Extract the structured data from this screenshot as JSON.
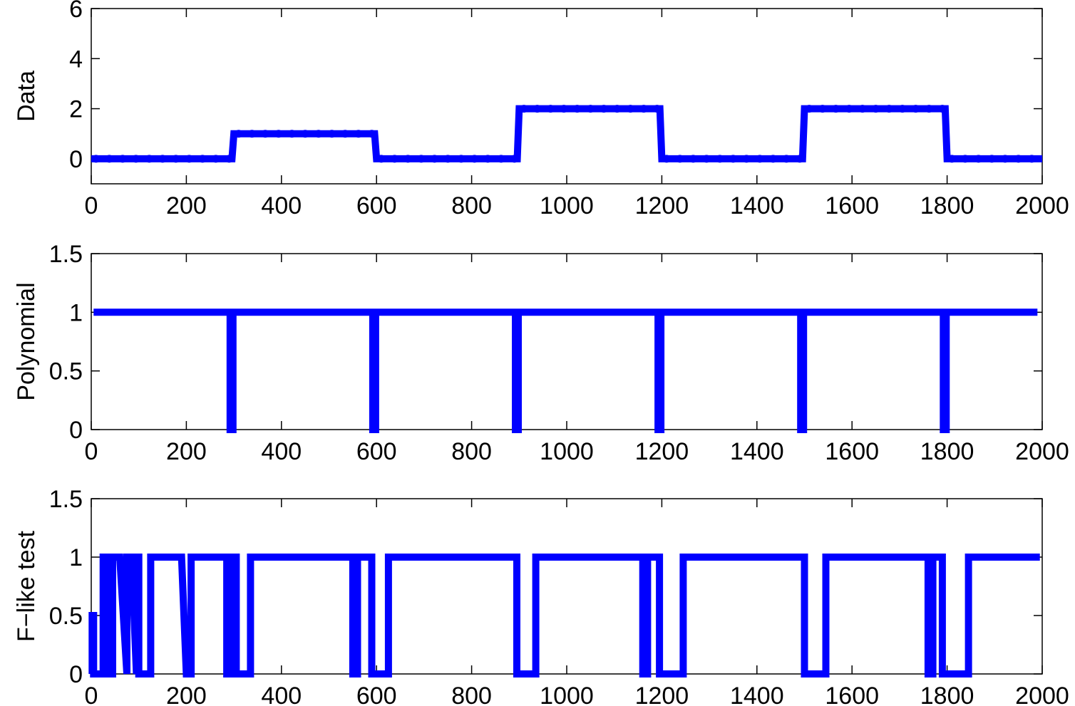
{
  "colors": {
    "line": "#0000ff",
    "axis": "#000000",
    "background": "#ffffff"
  },
  "chart_data": [
    {
      "type": "line",
      "ylabel": "Data",
      "xlim": [
        0,
        2000
      ],
      "ylim": [
        -1,
        6
      ],
      "xticks": [
        0,
        200,
        400,
        600,
        800,
        1000,
        1200,
        1400,
        1600,
        1800,
        2000
      ],
      "yticks": [
        0,
        2,
        4,
        6
      ],
      "ytick_labels": [
        "0",
        "2",
        "4",
        "6"
      ],
      "grid": false,
      "markers": true,
      "series": [
        {
          "x": [
            0,
            296,
            300,
            596,
            600,
            896,
            900,
            1196,
            1200,
            1496,
            1500,
            1796,
            1800,
            2000
          ],
          "y": [
            0,
            0,
            1,
            1,
            0,
            0,
            2,
            2,
            0,
            0,
            2,
            2,
            0,
            0
          ]
        }
      ]
    },
    {
      "type": "line",
      "ylabel": "Polynomial",
      "xlim": [
        0,
        2000
      ],
      "ylim": [
        0,
        1.5
      ],
      "xticks": [
        0,
        200,
        400,
        600,
        800,
        1000,
        1200,
        1400,
        1600,
        1800,
        2000
      ],
      "yticks": [
        0,
        0.5,
        1,
        1.5
      ],
      "ytick_labels": [
        "0",
        "0.5",
        "1",
        "1.5"
      ],
      "grid": false,
      "series": [
        {
          "x": [
            5,
            292,
            292,
            298,
            298,
            592,
            592,
            598,
            598,
            892,
            892,
            898,
            898,
            1192,
            1192,
            1198,
            1198,
            1492,
            1492,
            1498,
            1498,
            1792,
            1792,
            1798,
            1798,
            1990
          ],
          "y": [
            1,
            1,
            0,
            0,
            1,
            1,
            0,
            0,
            1,
            1,
            0,
            0,
            1,
            1,
            0,
            0,
            1,
            1,
            0,
            0,
            1,
            1,
            0,
            0,
            1,
            1
          ]
        }
      ]
    },
    {
      "type": "line",
      "ylabel": "F−like test",
      "xlim": [
        0,
        2000
      ],
      "ylim": [
        0,
        1.5
      ],
      "xticks": [
        0,
        200,
        400,
        600,
        800,
        1000,
        1200,
        1400,
        1600,
        1800,
        2000
      ],
      "yticks": [
        0,
        0.5,
        1,
        1.5
      ],
      "ytick_labels": [
        "0",
        "0.5",
        "1",
        "1.5"
      ],
      "grid": false,
      "series": [
        {
          "x": [
            2,
            2,
            5,
            5,
            25,
            25,
            30,
            30,
            35,
            35,
            40,
            40,
            45,
            45,
            60,
            75,
            75,
            85,
            95,
            95,
            100,
            100,
            125,
            125,
            130,
            130,
            190,
            200,
            200,
            210,
            210,
            285,
            285,
            290,
            290,
            295,
            295,
            302,
            302,
            305,
            305,
            310,
            310,
            335,
            335,
            550,
            550,
            560,
            560,
            590,
            590,
            600,
            600,
            625,
            625,
            640,
            640,
            895,
            895,
            930,
            930,
            935,
            935,
            1160,
            1160,
            1170,
            1170,
            1195,
            1195,
            1200,
            1200,
            1245,
            1245,
            1250,
            1250,
            1500,
            1500,
            1540,
            1540,
            1545,
            1545,
            1760,
            1760,
            1770,
            1770,
            1790,
            1790,
            1800,
            1800,
            1840,
            1840,
            1845,
            1845,
            1995
          ],
          "y": [
            0,
            0.5,
            0.5,
            0,
            0,
            1,
            1,
            0,
            0,
            1,
            1,
            0,
            0,
            1,
            1,
            0,
            1,
            1,
            0,
            1,
            1,
            0,
            0,
            1,
            1,
            1,
            1,
            0,
            0,
            0,
            1,
            1,
            0,
            0,
            1,
            1,
            0,
            0,
            1,
            1,
            0,
            0,
            0,
            0,
            1,
            1,
            0,
            0,
            1,
            1,
            0,
            0,
            0,
            0,
            1,
            1,
            1,
            1,
            0,
            0,
            0,
            0,
            1,
            1,
            0,
            0,
            1,
            1,
            0,
            0,
            0,
            0,
            1,
            1,
            1,
            1,
            0,
            0,
            0,
            0,
            1,
            1,
            0,
            0,
            1,
            1,
            0,
            0,
            0,
            0,
            0,
            0,
            1,
            1
          ]
        }
      ]
    }
  ]
}
